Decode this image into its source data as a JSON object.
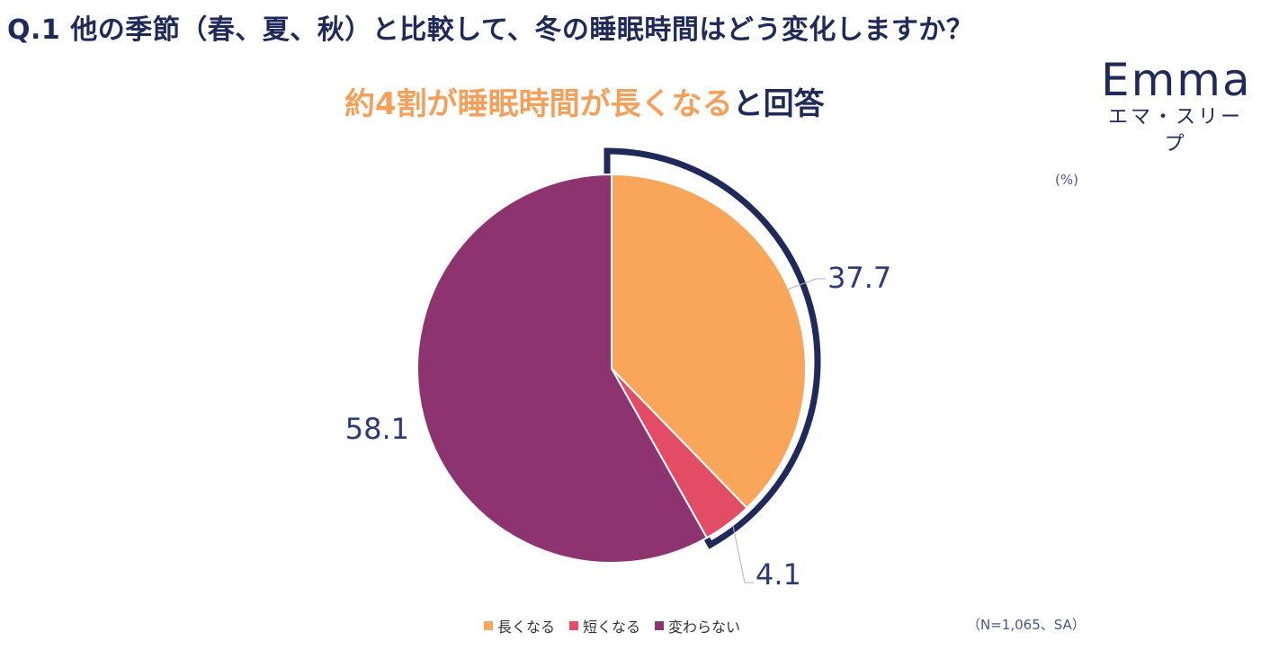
{
  "header": {
    "question": "Q.1 他の季節（春、夏、秋）と比較して、冬の睡眠時間はどう変化しますか？",
    "subtitle_highlight": "約4割が睡眠時間が長くなる",
    "subtitle_rest": "と回答"
  },
  "logo": {
    "word": "Emma",
    "kana": "エマ・スリープ"
  },
  "unit_label": "(%)",
  "note": "（N=1,065、SA）",
  "colors": {
    "title": "#1f2a5a",
    "highlight": "#f5a05a",
    "outline": "#1f2a5a"
  },
  "chart_data": {
    "type": "pie",
    "categories": [
      "長くなる",
      "短くなる",
      "変わらない"
    ],
    "values": [
      37.7,
      4.1,
      58.1
    ],
    "labels": [
      "37.7",
      "4.1",
      "58.1"
    ],
    "colors": [
      "#f9a65a",
      "#e24c64",
      "#8c3370"
    ],
    "highlighted": "長くなる",
    "legend": "bottom"
  }
}
